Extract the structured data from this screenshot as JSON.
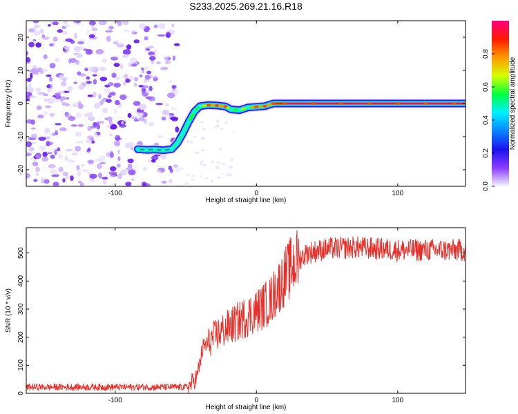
{
  "title": "S233.2025.269.21.16.R18",
  "chart_data": [
    {
      "type": "heatmap",
      "name": "spectrogram",
      "xlabel": "Height of straight line (km)",
      "ylabel": "Frequency (Hz)",
      "xlim": [
        -163,
        148
      ],
      "ylim": [
        -25,
        25
      ],
      "xticks": [
        -100,
        0,
        100
      ],
      "yticks": [
        -20,
        -10,
        0,
        10,
        20
      ],
      "colorbar": {
        "label": "Normalized spectral amplitude",
        "range": [
          0,
          1
        ],
        "ticks": [
          "0.0",
          "0.2",
          "0.4",
          "0.6",
          "0.8"
        ],
        "colormap": [
          "#f4f4ff",
          "#8a3cff",
          "#1a12ee",
          "#0a84ff",
          "#00f0ff",
          "#00ff40",
          "#d6ff00",
          "#ff9a00",
          "#ff1a00",
          "#ff0080"
        ]
      },
      "noise_region_x": [
        -163,
        -55
      ],
      "ridge": [
        {
          "x": -84,
          "f": -13.8,
          "amp": 0.3
        },
        {
          "x": -78,
          "f": -14.0,
          "amp": 0.35
        },
        {
          "x": -72,
          "f": -13.9,
          "amp": 0.3
        },
        {
          "x": -66,
          "f": -14.1,
          "amp": 0.35
        },
        {
          "x": -60,
          "f": -13.8,
          "amp": 0.4
        },
        {
          "x": -56,
          "f": -12.0,
          "amp": 0.45
        },
        {
          "x": -52,
          "f": -9.0,
          "amp": 0.5
        },
        {
          "x": -48,
          "f": -5.5,
          "amp": 0.45
        },
        {
          "x": -44,
          "f": -2.5,
          "amp": 0.55
        },
        {
          "x": -40,
          "f": -0.8,
          "amp": 0.6
        },
        {
          "x": -34,
          "f": -0.5,
          "amp": 0.75
        },
        {
          "x": -28,
          "f": -0.6,
          "amp": 0.9
        },
        {
          "x": -22,
          "f": -0.9,
          "amp": 0.75
        },
        {
          "x": -18,
          "f": -1.8,
          "amp": 0.6
        },
        {
          "x": -12,
          "f": -2.0,
          "amp": 0.55
        },
        {
          "x": -6,
          "f": -1.2,
          "amp": 0.7
        },
        {
          "x": 0,
          "f": -1.0,
          "amp": 0.75
        },
        {
          "x": 6,
          "f": -0.8,
          "amp": 0.85
        },
        {
          "x": 12,
          "f": 0.0,
          "amp": 0.8
        },
        {
          "x": 20,
          "f": 0.0,
          "amp": 0.95
        },
        {
          "x": 40,
          "f": 0.0,
          "amp": 1.0
        },
        {
          "x": 60,
          "f": 0.0,
          "amp": 1.0
        },
        {
          "x": 80,
          "f": 0.0,
          "amp": 0.95
        },
        {
          "x": 100,
          "f": 0.0,
          "amp": 1.0
        },
        {
          "x": 120,
          "f": 0.0,
          "amp": 0.95
        },
        {
          "x": 140,
          "f": 0.0,
          "amp": 1.0
        },
        {
          "x": 148,
          "f": 0.0,
          "amp": 0.95
        }
      ]
    },
    {
      "type": "line",
      "name": "snr",
      "xlabel": "Height of straight line (km)",
      "ylabel": "SNR (10 * v/v)",
      "xlim": [
        -163,
        148
      ],
      "ylim": [
        0,
        590
      ],
      "xticks": [
        -100,
        0,
        100
      ],
      "yticks": [
        0,
        100,
        200,
        300,
        400,
        500
      ],
      "color": "#e8302a",
      "trend": [
        {
          "x": -163,
          "y": 22
        },
        {
          "x": -48,
          "y": 22
        },
        {
          "x": -42,
          "y": 60
        },
        {
          "x": -38,
          "y": 160
        },
        {
          "x": -28,
          "y": 210
        },
        {
          "x": -18,
          "y": 240
        },
        {
          "x": -8,
          "y": 270
        },
        {
          "x": 2,
          "y": 300
        },
        {
          "x": 10,
          "y": 330
        },
        {
          "x": 18,
          "y": 400
        },
        {
          "x": 26,
          "y": 460
        },
        {
          "x": 36,
          "y": 500
        },
        {
          "x": 50,
          "y": 515
        },
        {
          "x": 70,
          "y": 520
        },
        {
          "x": 100,
          "y": 510
        },
        {
          "x": 148,
          "y": 510
        }
      ]
    }
  ]
}
